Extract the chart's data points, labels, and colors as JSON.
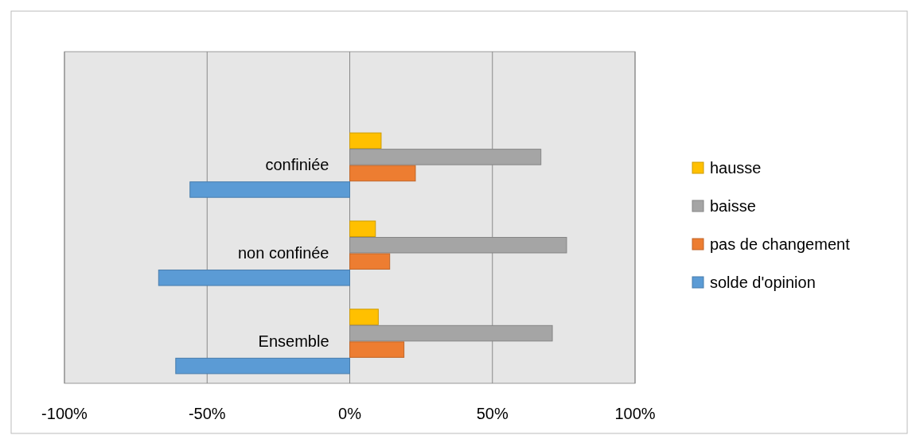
{
  "chart_data": {
    "type": "bar",
    "orientation": "horizontal",
    "categories": [
      "confiniée",
      "non confinée",
      "Ensemble"
    ],
    "series": [
      {
        "name": "hausse",
        "color": "#ffc000",
        "values": [
          11,
          9,
          10
        ]
      },
      {
        "name": "baisse",
        "color": "#a5a5a5",
        "values": [
          67,
          76,
          71
        ]
      },
      {
        "name": "pas de changement",
        "color": "#ed7d31",
        "values": [
          23,
          14,
          19
        ]
      },
      {
        "name": "solde d'opinion",
        "color": "#5b9bd5",
        "values": [
          -56,
          -67,
          -61
        ]
      }
    ],
    "xlim": [
      -100,
      100
    ],
    "xticks": [
      {
        "value": -100,
        "label": "-100%"
      },
      {
        "value": -50,
        "label": "-50%"
      },
      {
        "value": 0,
        "label": "0%"
      },
      {
        "value": 50,
        "label": "50%"
      },
      {
        "value": 100,
        "label": "100%"
      }
    ],
    "grid": "x",
    "legend": "right"
  }
}
